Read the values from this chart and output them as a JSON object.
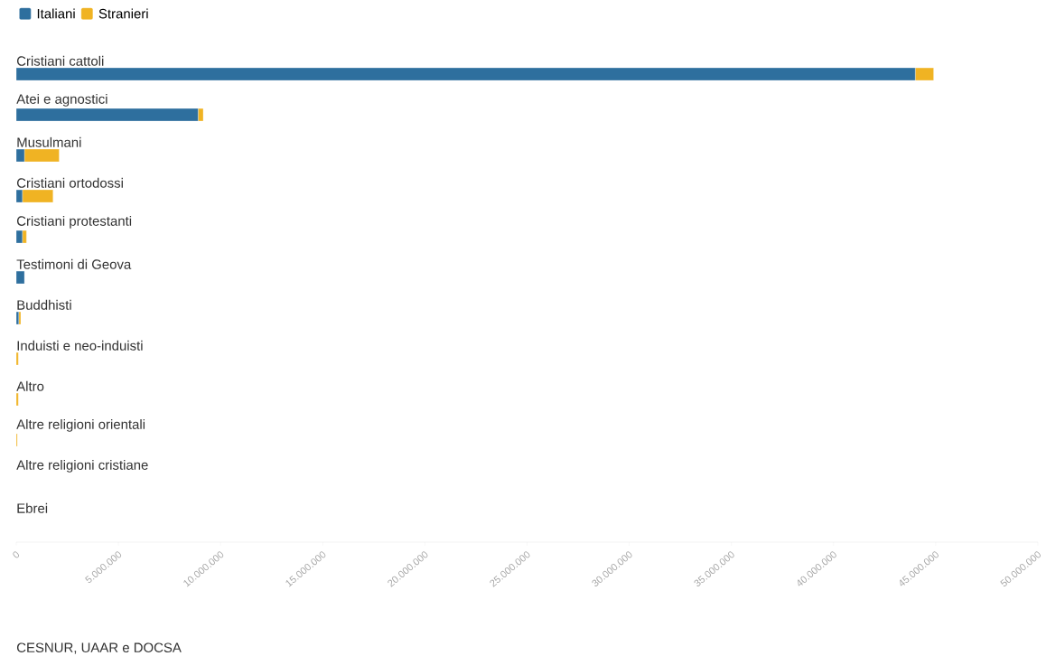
{
  "chart_data": {
    "type": "bar",
    "orientation": "horizontal",
    "stacked": true,
    "legend": "top left",
    "categories": [
      "Cristiani cattoli",
      "Atei e agnostici",
      "Musulmani",
      "Cristiani ortodossi",
      "Cristiani protestanti",
      "Testimoni di Geova",
      "Buddhisti",
      "Induisti e neo-induisti",
      "Altro",
      "Altre religioni orientali",
      "Altre religioni cristiane",
      "Ebrei"
    ],
    "series": [
      {
        "name": "Italiani",
        "color": "#2e6f9e",
        "values": [
          44000000,
          8900000,
          400000,
          300000,
          300000,
          400000,
          120000,
          0,
          0,
          0,
          0,
          0
        ]
      },
      {
        "name": "Stranieri",
        "color": "#f0b323",
        "values": [
          900000,
          250000,
          1700000,
          1500000,
          200000,
          0,
          100000,
          100000,
          100000,
          50000,
          null,
          0
        ]
      }
    ],
    "xlim": [
      0,
      50000000
    ],
    "xticks": [
      {
        "value": 0,
        "label": "0"
      },
      {
        "value": 5000000,
        "label": "5.000.000"
      },
      {
        "value": 10000000,
        "label": "10.000.000"
      },
      {
        "value": 15000000,
        "label": "15.000.000"
      },
      {
        "value": 20000000,
        "label": "20.000.000"
      },
      {
        "value": 25000000,
        "label": "25.000.000"
      },
      {
        "value": 30000000,
        "label": "30.000.000"
      },
      {
        "value": 35000000,
        "label": "35.000.000"
      },
      {
        "value": 40000000,
        "label": "40.000.000"
      },
      {
        "value": 45000000,
        "label": "45.000.000"
      },
      {
        "value": 50000000,
        "label": "50.000.000"
      }
    ],
    "annotations": [
      "CESNUR, UAAR e DOCSA"
    ]
  }
}
